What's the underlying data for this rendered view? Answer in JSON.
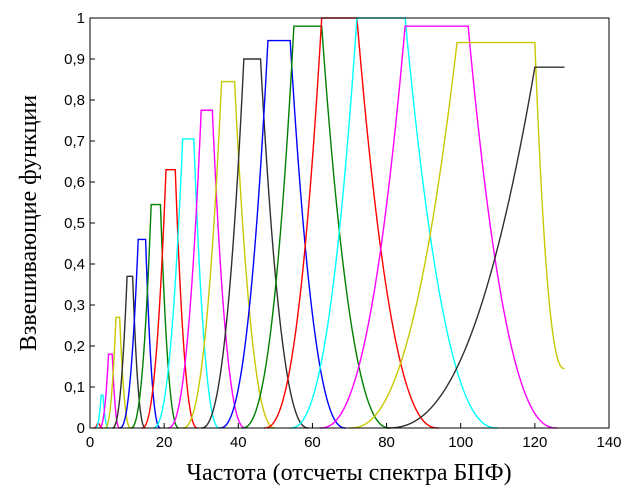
{
  "chart_data": {
    "type": "line",
    "title": "",
    "xlabel": "Частота (отсчеты спектра БПФ)",
    "ylabel": "Взвешивающие функции",
    "xlim": [
      0,
      140
    ],
    "ylim": [
      0,
      1
    ],
    "x_ticks": [
      0,
      20,
      40,
      60,
      80,
      100,
      120,
      140
    ],
    "x_tick_labels": [
      "0",
      "20",
      "40",
      "60",
      "80",
      "100",
      "120",
      "140"
    ],
    "y_ticks": [
      0,
      0.1,
      0.2,
      0.3,
      0.4,
      0.5,
      0.6,
      0.7,
      0.8,
      0.9,
      1
    ],
    "y_tick_labels": [
      "0",
      "0,1",
      "0,2",
      "0,3",
      "0,4",
      "0,5",
      "0,6",
      "0,7",
      "0,8",
      "0,9",
      "1"
    ],
    "grid": false,
    "legend": "none",
    "series": [
      {
        "color": "#ff0000",
        "start": 1,
        "rise_end": 2,
        "flat_end": 2.5,
        "peak": 0.01,
        "end": 3.5
      },
      {
        "color": "#00ffff",
        "start": 1.5,
        "rise_end": 3,
        "flat_end": 3.5,
        "peak": 0.08,
        "end": 5
      },
      {
        "color": "#ff00ff",
        "start": 2.5,
        "rise_end": 5,
        "flat_end": 6,
        "peak": 0.18,
        "end": 8
      },
      {
        "color": "#c8c800",
        "start": 4,
        "rise_end": 7,
        "flat_end": 8,
        "peak": 0.27,
        "end": 11
      },
      {
        "color": "#303030",
        "start": 6,
        "rise_end": 10,
        "flat_end": 11.5,
        "peak": 0.37,
        "end": 15
      },
      {
        "color": "#0000ff",
        "start": 8,
        "rise_end": 13,
        "flat_end": 15,
        "peak": 0.46,
        "end": 19
      },
      {
        "color": "#008000",
        "start": 11,
        "rise_end": 16.5,
        "flat_end": 19,
        "peak": 0.545,
        "end": 24
      },
      {
        "color": "#ff0000",
        "start": 14,
        "rise_end": 20.5,
        "flat_end": 23,
        "peak": 0.63,
        "end": 29
      },
      {
        "color": "#00ffff",
        "start": 17,
        "rise_end": 25,
        "flat_end": 28,
        "peak": 0.705,
        "end": 35
      },
      {
        "color": "#ff00ff",
        "start": 21,
        "rise_end": 30,
        "flat_end": 33,
        "peak": 0.775,
        "end": 42
      },
      {
        "color": "#c8c800",
        "start": 25,
        "rise_end": 35.5,
        "flat_end": 39,
        "peak": 0.845,
        "end": 50
      },
      {
        "color": "#303030",
        "start": 30,
        "rise_end": 41.5,
        "flat_end": 46,
        "peak": 0.9,
        "end": 59
      },
      {
        "color": "#0000ff",
        "start": 35,
        "rise_end": 48,
        "flat_end": 54,
        "peak": 0.945,
        "end": 69
      },
      {
        "color": "#008000",
        "start": 41,
        "rise_end": 55,
        "flat_end": 62.5,
        "peak": 0.98,
        "end": 81
      },
      {
        "color": "#ff0000",
        "start": 47,
        "rise_end": 62.5,
        "flat_end": 72,
        "peak": 1.0,
        "end": 94
      },
      {
        "color": "#00ffff",
        "start": 54,
        "rise_end": 72,
        "flat_end": 85,
        "peak": 1.0,
        "end": 110
      },
      {
        "color": "#ff00ff",
        "start": 62,
        "rise_end": 85,
        "flat_end": 102,
        "peak": 0.98,
        "end": 126
      },
      {
        "color": "#c8c800",
        "start": 70,
        "rise_end": 99,
        "flat_end": 120,
        "peak": 0.94,
        "end": 128,
        "end_value": 0.145
      },
      {
        "color": "#303030",
        "start": 80,
        "rise_end": 120,
        "flat_end": 128,
        "peak": 0.88,
        "end": 128
      }
    ]
  }
}
